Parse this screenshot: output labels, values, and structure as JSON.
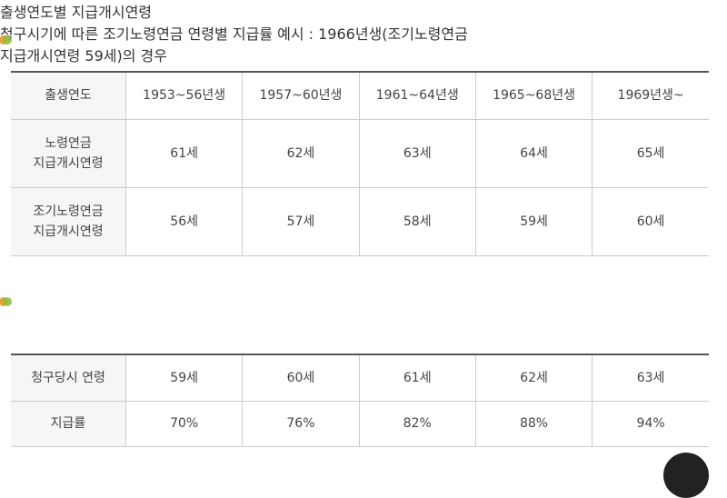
{
  "sections": [
    {
      "title": [
        "출생연도별 지급개시연령"
      ],
      "table": {
        "header": [
          "출생연도",
          "1953~56년생",
          "1957~60년생",
          "1961~64년생",
          "1965~68년생",
          "1969년생~"
        ],
        "rows": [
          [
            [
              "노령연금",
              "지급개시연령"
            ],
            [
              "61세"
            ],
            [
              "62세"
            ],
            [
              "63세"
            ],
            [
              "64세"
            ],
            [
              "65세"
            ]
          ],
          [
            [
              "조기노령연금",
              "지급개시연령"
            ],
            [
              "56세"
            ],
            [
              "57세"
            ],
            [
              "58세"
            ],
            [
              "59세"
            ],
            [
              "60세"
            ]
          ]
        ]
      }
    },
    {
      "title": [
        "청구시기에 따른 조기노령연금 연령별 지급률 예시 : 1966년생(조기노령연금",
        "지급개시연령 59세)의 경우"
      ],
      "table": {
        "header": [
          "청구당시 연령",
          "59세",
          "60세",
          "61세",
          "62세",
          "63세"
        ],
        "rows": [
          [
            [
              "지급률"
            ],
            [
              "70%"
            ],
            [
              "76%"
            ],
            [
              "82%"
            ],
            [
              "88%"
            ],
            [
              "94%"
            ]
          ]
        ]
      }
    }
  ]
}
